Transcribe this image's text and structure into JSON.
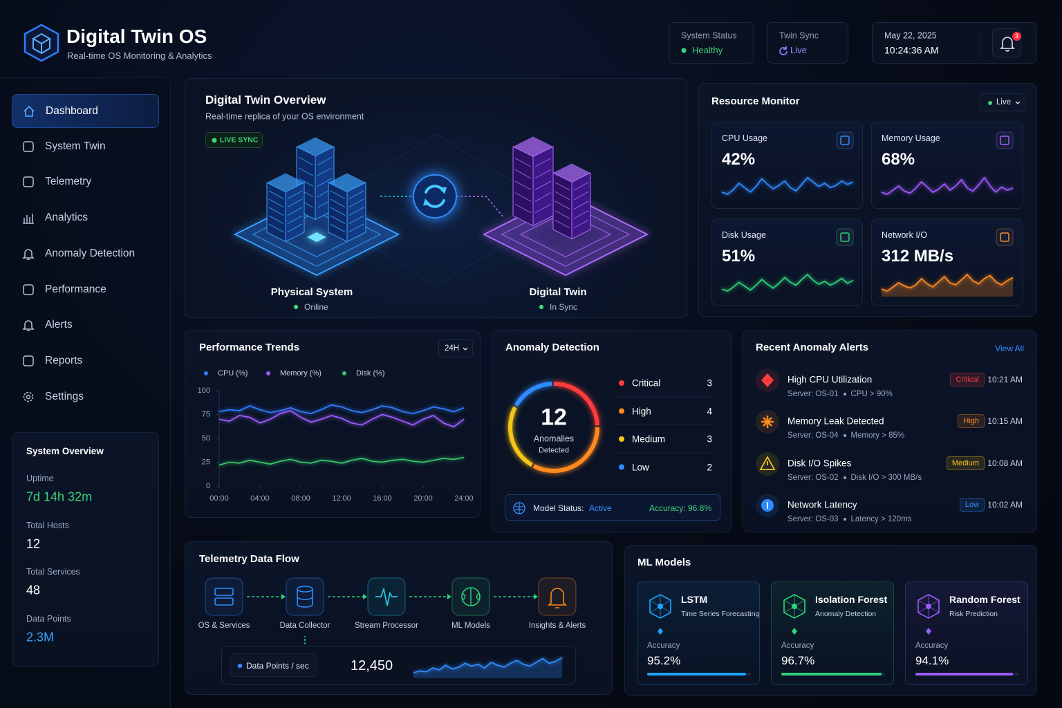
{
  "header": {
    "title": "Digital Twin OS",
    "subtitle": "Real-time OS Monitoring & Analytics",
    "system_status": {
      "label": "System Status",
      "value": "Healthy"
    },
    "twin_sync": {
      "label": "Twin Sync",
      "value": "Live"
    },
    "date": "May 22, 2025",
    "time": "10:24:36 AM",
    "notifications": 3
  },
  "sidebar": {
    "nav": [
      "Dashboard",
      "System Twin",
      "Telemetry",
      "Analytics",
      "Anomaly Detection",
      "Performance",
      "Alerts",
      "Reports",
      "Settings"
    ],
    "overview": {
      "title": "System Overview",
      "stats": [
        {
          "label": "Uptime",
          "value": "7d 14h 32m",
          "color": "#3fd37a"
        },
        {
          "label": "Total Hosts",
          "value": "12",
          "color": "#ffffff"
        },
        {
          "label": "Total Services",
          "value": "48",
          "color": "#ffffff"
        },
        {
          "label": "Data Points",
          "value": "2.3M",
          "color": "#39a3ff"
        }
      ]
    }
  },
  "twin_overview": {
    "title": "Digital Twin Overview",
    "subtitle": "Real-time replica of your OS environment",
    "badge": "LIVE SYNC",
    "physical": {
      "name": "Physical System",
      "status": "Online"
    },
    "twin": {
      "name": "Digital Twin",
      "status": "In Sync"
    }
  },
  "resource_monitor": {
    "title": "Resource Monitor",
    "mode": "Live",
    "cards": [
      {
        "label": "CPU Usage",
        "value": "42%",
        "color": "#2f8cff",
        "trend": [
          40,
          38,
          42,
          48,
          44,
          40,
          45,
          52,
          47,
          43,
          46,
          50,
          44,
          41,
          47,
          53,
          49,
          45,
          48,
          44,
          46,
          50,
          47,
          49
        ]
      },
      {
        "label": "Memory Usage",
        "value": "68%",
        "color": "#a259ff",
        "trend": [
          60,
          58,
          62,
          66,
          61,
          59,
          64,
          70,
          65,
          60,
          63,
          68,
          62,
          66,
          72,
          64,
          61,
          67,
          74,
          66,
          60,
          65,
          62,
          64
        ]
      },
      {
        "label": "Disk Usage",
        "value": "51%",
        "color": "#2fd27a",
        "trend": [
          45,
          43,
          47,
          52,
          48,
          44,
          49,
          55,
          50,
          46,
          51,
          57,
          52,
          49,
          55,
          60,
          54,
          50,
          53,
          49,
          52,
          56,
          51,
          54
        ]
      },
      {
        "label": "Network I/O",
        "value": "312 MB/s",
        "color": "#ff8a1f",
        "trend": [
          280,
          270,
          290,
          310,
          295,
          285,
          300,
          330,
          305,
          290,
          315,
          340,
          310,
          300,
          325,
          350,
          320,
          305,
          330,
          345,
          315,
          300,
          320,
          335
        ]
      }
    ]
  },
  "performance_trends": {
    "type": "line",
    "title": "Performance Trends",
    "range": "24H",
    "x": [
      0,
      1,
      2,
      3,
      4,
      5,
      6,
      7,
      8,
      9,
      10,
      11,
      12,
      13,
      14,
      15,
      16,
      17,
      18,
      19,
      20,
      21,
      22,
      23,
      24
    ],
    "xlim": [
      0,
      24
    ],
    "xticks": [
      {
        "value": 0,
        "label": "00:00"
      },
      {
        "value": 4,
        "label": "04:00"
      },
      {
        "value": 8,
        "label": "08:00"
      },
      {
        "value": 12,
        "label": "12:00"
      },
      {
        "value": 16,
        "label": "16:00"
      },
      {
        "value": 20,
        "label": "20:00"
      },
      {
        "value": 24,
        "label": "24:00"
      }
    ],
    "ylim": [
      0,
      100
    ],
    "yticks": [
      0,
      25,
      50,
      75,
      100
    ],
    "series": [
      {
        "name": "CPU (%)",
        "color": "#2f7dff",
        "values": [
          78,
          80,
          79,
          84,
          80,
          77,
          79,
          82,
          78,
          76,
          80,
          85,
          83,
          79,
          77,
          80,
          84,
          82,
          78,
          76,
          79,
          83,
          81,
          78,
          82
        ]
      },
      {
        "name": "Memory (%)",
        "color": "#9b5cff",
        "values": [
          70,
          68,
          74,
          72,
          66,
          70,
          76,
          79,
          72,
          67,
          70,
          74,
          71,
          66,
          64,
          70,
          75,
          72,
          68,
          64,
          70,
          74,
          66,
          62,
          70
        ]
      },
      {
        "name": "Disk (%)",
        "color": "#35c46a",
        "values": [
          22,
          25,
          24,
          27,
          25,
          23,
          26,
          28,
          25,
          24,
          27,
          26,
          24,
          27,
          29,
          26,
          25,
          27,
          28,
          26,
          25,
          27,
          29,
          28,
          30
        ]
      }
    ]
  },
  "anomaly_detection": {
    "title": "Anomaly Detection",
    "total": 12,
    "total_label": "Anomalies",
    "total_sub": "Detected",
    "levels": [
      {
        "name": "Critical",
        "count": 3,
        "color": "#ff3b3b"
      },
      {
        "name": "High",
        "count": 4,
        "color": "#ff8a1f"
      },
      {
        "name": "Medium",
        "count": 3,
        "color": "#f5c518"
      },
      {
        "name": "Low",
        "count": 2,
        "color": "#2f8cff"
      }
    ],
    "model_status_label": "Model Status:",
    "model_status": "Active",
    "accuracy": "Accuracy: 96.8%"
  },
  "recent_alerts": {
    "title": "Recent Anomaly Alerts",
    "view_all": "View All",
    "items": [
      {
        "title": "High CPU Utilization",
        "server": "Server: OS-01",
        "detail": "CPU > 90%",
        "severity": "Critical",
        "color": "#ff3b3b",
        "time": "10:21 AM"
      },
      {
        "title": "Memory Leak Detected",
        "server": "Server: OS-04",
        "detail": "Memory > 85%",
        "severity": "High",
        "color": "#ff8a1f",
        "time": "10:15 AM"
      },
      {
        "title": "Disk I/O Spikes",
        "server": "Server: OS-02",
        "detail": "Disk I/O > 300 MB/s",
        "severity": "Medium",
        "color": "#f5c518",
        "time": "10:08 AM"
      },
      {
        "title": "Network Latency",
        "server": "Server: OS-03",
        "detail": "Latency > 120ms",
        "severity": "Low",
        "color": "#2f8cff",
        "time": "10:02 AM"
      }
    ]
  },
  "telemetry": {
    "title": "Telemetry Data Flow",
    "steps": [
      {
        "label": "OS & Services",
        "color": "#2f8cff"
      },
      {
        "label": "Data Collector",
        "color": "#2f8cff"
      },
      {
        "label": "Stream Processor",
        "color": "#1fc8e0"
      },
      {
        "label": "ML Models",
        "color": "#2fd27a"
      },
      {
        "label": "Insights & Alerts",
        "color": "#ff8a1f"
      }
    ],
    "metric_label": "Data Points / sec",
    "metric_value": "12,450",
    "trend": [
      20,
      22,
      21,
      25,
      23,
      28,
      24,
      26,
      30,
      27,
      29,
      25,
      31,
      28,
      26,
      30,
      33,
      29,
      27,
      31,
      35,
      30,
      32,
      36
    ]
  },
  "ml_models": {
    "title": "ML Models",
    "accuracy_label": "Accuracy",
    "models": [
      {
        "name": "LSTM",
        "description": "Time Series Forecasting",
        "accuracy": {
          "value": 95.2,
          "label": "95.2%"
        },
        "color": "#1fa5ff"
      },
      {
        "name": "Isolation Forest",
        "description": "Anomaly Detection",
        "accuracy": {
          "value": 96.7,
          "label": "96.7%"
        },
        "color": "#2fd27a"
      },
      {
        "name": "Random Forest",
        "description": "Risk Prediction",
        "accuracy": {
          "value": 94.1,
          "label": "94.1%"
        },
        "color": "#9b5cff"
      }
    ]
  }
}
